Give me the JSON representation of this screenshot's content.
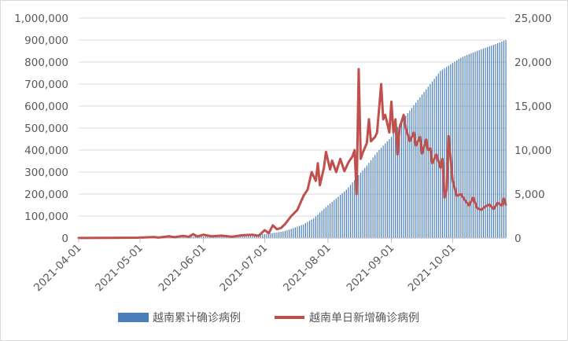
{
  "chart_data": {
    "type": "bar+line",
    "x_start": "2021-04-01",
    "x_end": "2021-10-27",
    "x_ticks": [
      "2021-04-01",
      "2021-05-01",
      "2021-06-01",
      "2021-07-01",
      "2021-08-01",
      "2021-09-01",
      "2021-10-01"
    ],
    "y_left": {
      "range": [
        0,
        1000000
      ],
      "ticks": [
        "0",
        "100,000",
        "200,000",
        "300,000",
        "400,000",
        "500,000",
        "600,000",
        "700,000",
        "800,000",
        "900,000",
        "1,000,000"
      ]
    },
    "y_right": {
      "range": [
        0,
        25000
      ],
      "ticks": [
        "0",
        "5,000",
        "10,000",
        "15,000",
        "20,000",
        "25,000"
      ]
    },
    "grid": true,
    "legend_position": "bottom",
    "series": [
      {
        "name": "越南累计确诊病例",
        "type": "bar",
        "axis": "left",
        "color": "#4a7ebb",
        "points": [
          [
            "2021-04-01",
            2600
          ],
          [
            "2021-05-01",
            3000
          ],
          [
            "2021-06-01",
            7500
          ],
          [
            "2021-07-01",
            18000
          ],
          [
            "2021-07-05",
            23000
          ],
          [
            "2021-07-10",
            30000
          ],
          [
            "2021-07-15",
            45000
          ],
          [
            "2021-07-20",
            62000
          ],
          [
            "2021-07-25",
            90000
          ],
          [
            "2021-08-01",
            150000
          ],
          [
            "2021-08-05",
            180000
          ],
          [
            "2021-08-10",
            220000
          ],
          [
            "2021-08-15",
            275000
          ],
          [
            "2021-08-20",
            330000
          ],
          [
            "2021-08-25",
            390000
          ],
          [
            "2021-09-01",
            460000
          ],
          [
            "2021-09-05",
            520000
          ],
          [
            "2021-09-10",
            580000
          ],
          [
            "2021-09-15",
            640000
          ],
          [
            "2021-09-20",
            700000
          ],
          [
            "2021-09-25",
            760000
          ],
          [
            "2021-09-30",
            790000
          ],
          [
            "2021-10-05",
            820000
          ],
          [
            "2021-10-10",
            840000
          ],
          [
            "2021-10-15",
            858000
          ],
          [
            "2021-10-20",
            875000
          ],
          [
            "2021-10-27",
            900000
          ]
        ]
      },
      {
        "name": "越南单日新增确诊病例",
        "type": "line",
        "axis": "right",
        "color": "#c0504d",
        "points": [
          [
            "2021-04-01",
            15
          ],
          [
            "2021-04-15",
            20
          ],
          [
            "2021-04-30",
            40
          ],
          [
            "2021-05-08",
            120
          ],
          [
            "2021-05-10",
            60
          ],
          [
            "2021-05-15",
            200
          ],
          [
            "2021-05-18",
            100
          ],
          [
            "2021-05-22",
            250
          ],
          [
            "2021-05-25",
            150
          ],
          [
            "2021-05-27",
            450
          ],
          [
            "2021-05-29",
            180
          ],
          [
            "2021-06-01",
            380
          ],
          [
            "2021-06-05",
            200
          ],
          [
            "2021-06-10",
            280
          ],
          [
            "2021-06-15",
            150
          ],
          [
            "2021-06-20",
            320
          ],
          [
            "2021-06-25",
            380
          ],
          [
            "2021-06-28",
            250
          ],
          [
            "2021-07-01",
            900
          ],
          [
            "2021-07-03",
            550
          ],
          [
            "2021-07-05",
            1450
          ],
          [
            "2021-07-07",
            1000
          ],
          [
            "2021-07-09",
            1150
          ],
          [
            "2021-07-11",
            1600
          ],
          [
            "2021-07-14",
            2500
          ],
          [
            "2021-07-17",
            3200
          ],
          [
            "2021-07-20",
            4800
          ],
          [
            "2021-07-22",
            5500
          ],
          [
            "2021-07-24",
            7500
          ],
          [
            "2021-07-26",
            6500
          ],
          [
            "2021-07-27",
            8500
          ],
          [
            "2021-07-28",
            6000
          ],
          [
            "2021-07-30",
            8000
          ],
          [
            "2021-07-31",
            9800
          ],
          [
            "2021-08-02",
            7800
          ],
          [
            "2021-08-03",
            8800
          ],
          [
            "2021-08-05",
            7500
          ],
          [
            "2021-08-07",
            9000
          ],
          [
            "2021-08-09",
            7600
          ],
          [
            "2021-08-11",
            8600
          ],
          [
            "2021-08-13",
            9300
          ],
          [
            "2021-08-14",
            10000
          ],
          [
            "2021-08-15",
            5000
          ],
          [
            "2021-08-16",
            19200
          ],
          [
            "2021-08-17",
            9000
          ],
          [
            "2021-08-18",
            9700
          ],
          [
            "2021-08-20",
            10800
          ],
          [
            "2021-08-21",
            13500
          ],
          [
            "2021-08-22",
            11000
          ],
          [
            "2021-08-24",
            11500
          ],
          [
            "2021-08-25",
            12000
          ],
          [
            "2021-08-27",
            17500
          ],
          [
            "2021-08-28",
            13500
          ],
          [
            "2021-08-29",
            14000
          ],
          [
            "2021-08-31",
            12000
          ],
          [
            "2021-09-01",
            15500
          ],
          [
            "2021-09-02",
            12000
          ],
          [
            "2021-09-03",
            13500
          ],
          [
            "2021-09-04",
            9500
          ],
          [
            "2021-09-05",
            12500
          ],
          [
            "2021-09-07",
            14000
          ],
          [
            "2021-09-08",
            12500
          ],
          [
            "2021-09-10",
            11000
          ],
          [
            "2021-09-12",
            12000
          ],
          [
            "2021-09-13",
            10500
          ],
          [
            "2021-09-15",
            11500
          ],
          [
            "2021-09-16",
            9600
          ],
          [
            "2021-09-18",
            11200
          ],
          [
            "2021-09-19",
            10000
          ],
          [
            "2021-09-20",
            10200
          ],
          [
            "2021-09-21",
            8500
          ],
          [
            "2021-09-23",
            9500
          ],
          [
            "2021-09-25",
            8000
          ],
          [
            "2021-09-26",
            9000
          ],
          [
            "2021-09-27",
            4600
          ],
          [
            "2021-09-28",
            5500
          ],
          [
            "2021-09-29",
            11600
          ],
          [
            "2021-09-30",
            9000
          ],
          [
            "2021-10-01",
            6500
          ],
          [
            "2021-10-03",
            4800
          ],
          [
            "2021-10-05",
            5000
          ],
          [
            "2021-10-07",
            4300
          ],
          [
            "2021-10-09",
            3700
          ],
          [
            "2021-10-11",
            4600
          ],
          [
            "2021-10-13",
            3400
          ],
          [
            "2021-10-15",
            3200
          ],
          [
            "2021-10-17",
            3600
          ],
          [
            "2021-10-19",
            3800
          ],
          [
            "2021-10-21",
            3300
          ],
          [
            "2021-10-23",
            4000
          ],
          [
            "2021-10-25",
            3700
          ],
          [
            "2021-10-26",
            4500
          ],
          [
            "2021-10-27",
            3800
          ]
        ]
      }
    ]
  }
}
